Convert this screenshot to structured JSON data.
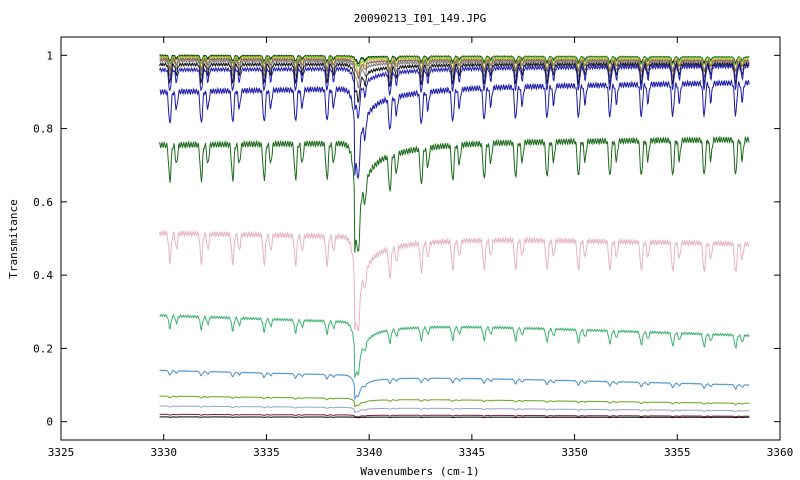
{
  "chart_data": {
    "type": "line",
    "title": "20090213_I01_149.JPG",
    "xlabel": "Wavenumbers (cm-1)",
    "ylabel": "Transmitance",
    "xlim": [
      3325,
      3360
    ],
    "ylim": [
      -0.05,
      1.05
    ],
    "xticks": [
      3325,
      3330,
      3335,
      3340,
      3345,
      3350,
      3355,
      3360
    ],
    "yticks": [
      0,
      0.2,
      0.4,
      0.6,
      0.8,
      1
    ],
    "ytick_labels": [
      "0",
      "0.2",
      "0.4",
      "0.6",
      "0.8",
      "1"
    ],
    "grid": false,
    "legend": "none",
    "x_range_of_data": [
      3329.8,
      3358.5
    ],
    "major_dip_x": 3339.3,
    "series": [
      {
        "color": "#000000",
        "start": 1.0,
        "end": 0.995,
        "main_dip": 0.99,
        "line_depth": 0.015
      },
      {
        "color": "#2ca02c",
        "start": 0.998,
        "end": 0.995,
        "main_dip": 0.985,
        "line_depth": 0.02
      },
      {
        "color": "#bcbd22",
        "start": 0.995,
        "end": 0.99,
        "main_dip": 0.975,
        "line_depth": 0.03
      },
      {
        "color": "#8c564b",
        "start": 0.99,
        "end": 0.985,
        "main_dip": 0.96,
        "line_depth": 0.03
      },
      {
        "color": "#7f7f7f",
        "start": 0.985,
        "end": 0.98,
        "main_dip": 0.94,
        "line_depth": 0.04
      },
      {
        "color": "#111111",
        "start": 0.975,
        "end": 0.975,
        "main_dip": 0.9,
        "line_depth": 0.05
      },
      {
        "color": "#1f1fb4",
        "start": 0.96,
        "end": 0.97,
        "main_dip": 0.85,
        "line_depth": 0.06
      },
      {
        "color": "#1a1aa8",
        "start": 0.9,
        "end": 0.925,
        "main_dip": 0.67,
        "line_depth": 0.09
      },
      {
        "color": "#1a6b1a",
        "start": 0.755,
        "end": 0.77,
        "main_dip": 0.46,
        "line_depth": 0.1
      },
      {
        "color": "#e8b4c0",
        "start": 0.515,
        "end": 0.485,
        "main_dip": 0.255,
        "line_depth": 0.08
      },
      {
        "color": "#3cb371",
        "start": 0.29,
        "end": 0.235,
        "main_dip": 0.135,
        "line_depth": 0.035
      },
      {
        "color": "#4a8fc9",
        "start": 0.14,
        "end": 0.1,
        "main_dip": 0.075,
        "line_depth": 0.012
      },
      {
        "color": "#6aa51c",
        "start": 0.07,
        "end": 0.05,
        "main_dip": 0.048,
        "line_depth": 0.004
      },
      {
        "color": "#9aa2c8",
        "start": 0.043,
        "end": 0.03,
        "main_dip": 0.03,
        "line_depth": 0.003
      },
      {
        "color": "#7b1f3a",
        "start": 0.02,
        "end": 0.015,
        "main_dip": 0.015,
        "line_depth": 0.002
      },
      {
        "color": "#000000",
        "start": 0.013,
        "end": 0.012,
        "main_dip": 0.012,
        "line_depth": 0.001
      }
    ]
  }
}
